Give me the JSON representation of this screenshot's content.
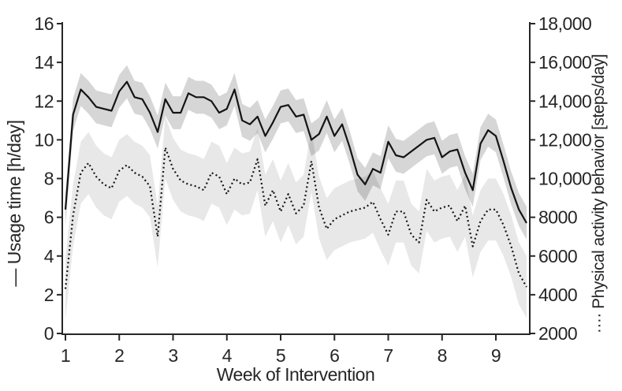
{
  "figure": {
    "background": "#ffffff",
    "axis_color": "#262626",
    "text_color": "#262626"
  },
  "chart_data": {
    "type": "line",
    "title": "",
    "xlabel": "Week of Intervention",
    "ylabel_left": "— Usage time [h/day]",
    "ylabel_right": "···· Physical activity behavior [steps/day]",
    "x_axis": {
      "tick_values": [
        1,
        2,
        3,
        4,
        5,
        6,
        7,
        8,
        9
      ],
      "tick_labels": [
        "1",
        "2",
        "3",
        "4",
        "5",
        "6",
        "7",
        "8",
        "9"
      ],
      "range": [
        0.95,
        9.63
      ]
    },
    "y_left_axis": {
      "label": "Usage time [h/day]",
      "units": "h/day",
      "range": [
        0,
        16
      ],
      "tick_values": [
        0,
        2,
        4,
        6,
        8,
        10,
        12,
        14,
        16
      ],
      "tick_labels": [
        "0",
        "2",
        "4",
        "6",
        "8",
        "10",
        "12",
        "14",
        "16"
      ]
    },
    "y_right_axis": {
      "label": "Physical activity behavior [steps/day]",
      "units": "steps/day",
      "range": [
        2000,
        18000
      ],
      "tick_values": [
        2000,
        4000,
        6000,
        8000,
        10000,
        12000,
        14000,
        16000,
        18000
      ],
      "tick_labels": [
        "2000",
        "4000",
        "6000",
        "8000",
        "10,000",
        "12,000",
        "14,000",
        "16,000",
        "18,000"
      ]
    },
    "x_start_week": 1,
    "x_step_weeks": 0.142857,
    "grid": false,
    "legend_position": "axis-labels",
    "series": [
      {
        "name": "Usage time",
        "marker": "solid-line",
        "axis": "left",
        "line_color": "#141414",
        "band_color": "rgba(0,0,0,0.16)",
        "band_halfwidth": 0.85,
        "values": [
          6.4,
          11.3,
          12.6,
          12.2,
          11.7,
          11.6,
          11.5,
          12.5,
          13.0,
          12.2,
          12.1,
          11.4,
          10.4,
          12.1,
          11.4,
          11.4,
          12.4,
          12.2,
          12.2,
          12.0,
          11.4,
          11.6,
          12.6,
          11.0,
          10.8,
          11.2,
          10.2,
          10.9,
          11.7,
          11.8,
          11.2,
          11.3,
          10.0,
          10.3,
          11.2,
          10.2,
          10.8,
          9.6,
          8.2,
          7.7,
          8.5,
          8.3,
          9.9,
          9.2,
          9.1,
          9.4,
          9.7,
          10.0,
          10.1,
          9.1,
          9.4,
          9.5,
          8.3,
          7.4,
          9.8,
          10.5,
          10.2,
          8.9,
          7.5,
          6.4,
          5.7
        ]
      },
      {
        "name": "Physical activity behavior",
        "marker": "dotted-line",
        "axis": "right",
        "line_color": "#141414",
        "band_color": "rgba(0,0,0,0.09)",
        "band_halfwidth": 1600,
        "values": [
          4300,
          8100,
          10300,
          10800,
          10100,
          9700,
          9500,
          10400,
          10700,
          10300,
          10100,
          9600,
          7000,
          11600,
          10500,
          9900,
          9700,
          9600,
          9400,
          10300,
          10100,
          9200,
          10000,
          9700,
          9800,
          11000,
          8600,
          9400,
          8300,
          9200,
          8200,
          8600,
          10900,
          8500,
          7400,
          7900,
          8100,
          8300,
          8400,
          8500,
          8800,
          7900,
          7100,
          8300,
          8300,
          7100,
          6700,
          8900,
          8300,
          8500,
          8600,
          7800,
          8600,
          6500,
          7800,
          8400,
          8400,
          7600,
          6500,
          5100,
          4400
        ]
      }
    ]
  }
}
